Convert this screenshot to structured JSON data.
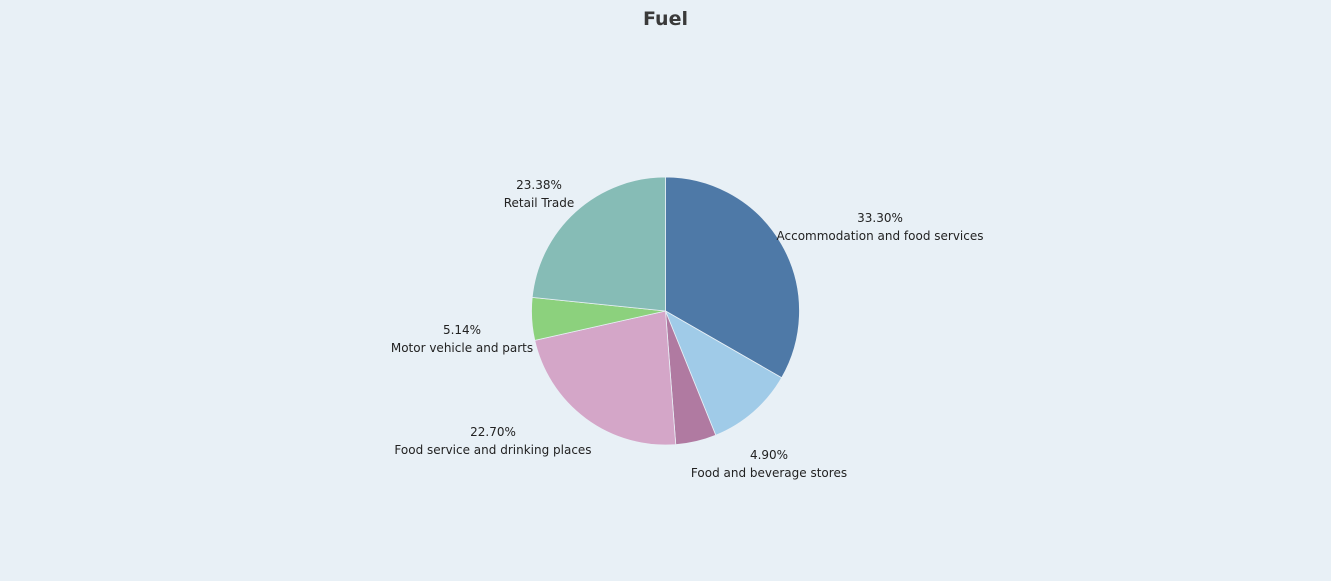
{
  "chart_data": {
    "type": "pie",
    "title": "Fuel",
    "slices": [
      {
        "label": "Accommodation and food services",
        "value": 33.3,
        "value_label": "33.30%",
        "color": "#4e79a7"
      },
      {
        "label": "",
        "value": 10.58,
        "value_label": "",
        "color": "#a0cbe8"
      },
      {
        "label": "Food and beverage stores",
        "value": 4.9,
        "value_label": "4.90%",
        "color": "#b07aa1"
      },
      {
        "label": "Food service and drinking places",
        "value": 22.7,
        "value_label": "22.70%",
        "color": "#d4a6c8"
      },
      {
        "label": "Motor vehicle and parts",
        "value": 5.14,
        "value_label": "5.14%",
        "color": "#8cd17d"
      },
      {
        "label": "Retail Trade",
        "value": 23.38,
        "value_label": "23.38%",
        "color": "#86bcb6"
      }
    ],
    "start_angle_deg": 0,
    "direction": "clockwise",
    "legend": "none"
  }
}
